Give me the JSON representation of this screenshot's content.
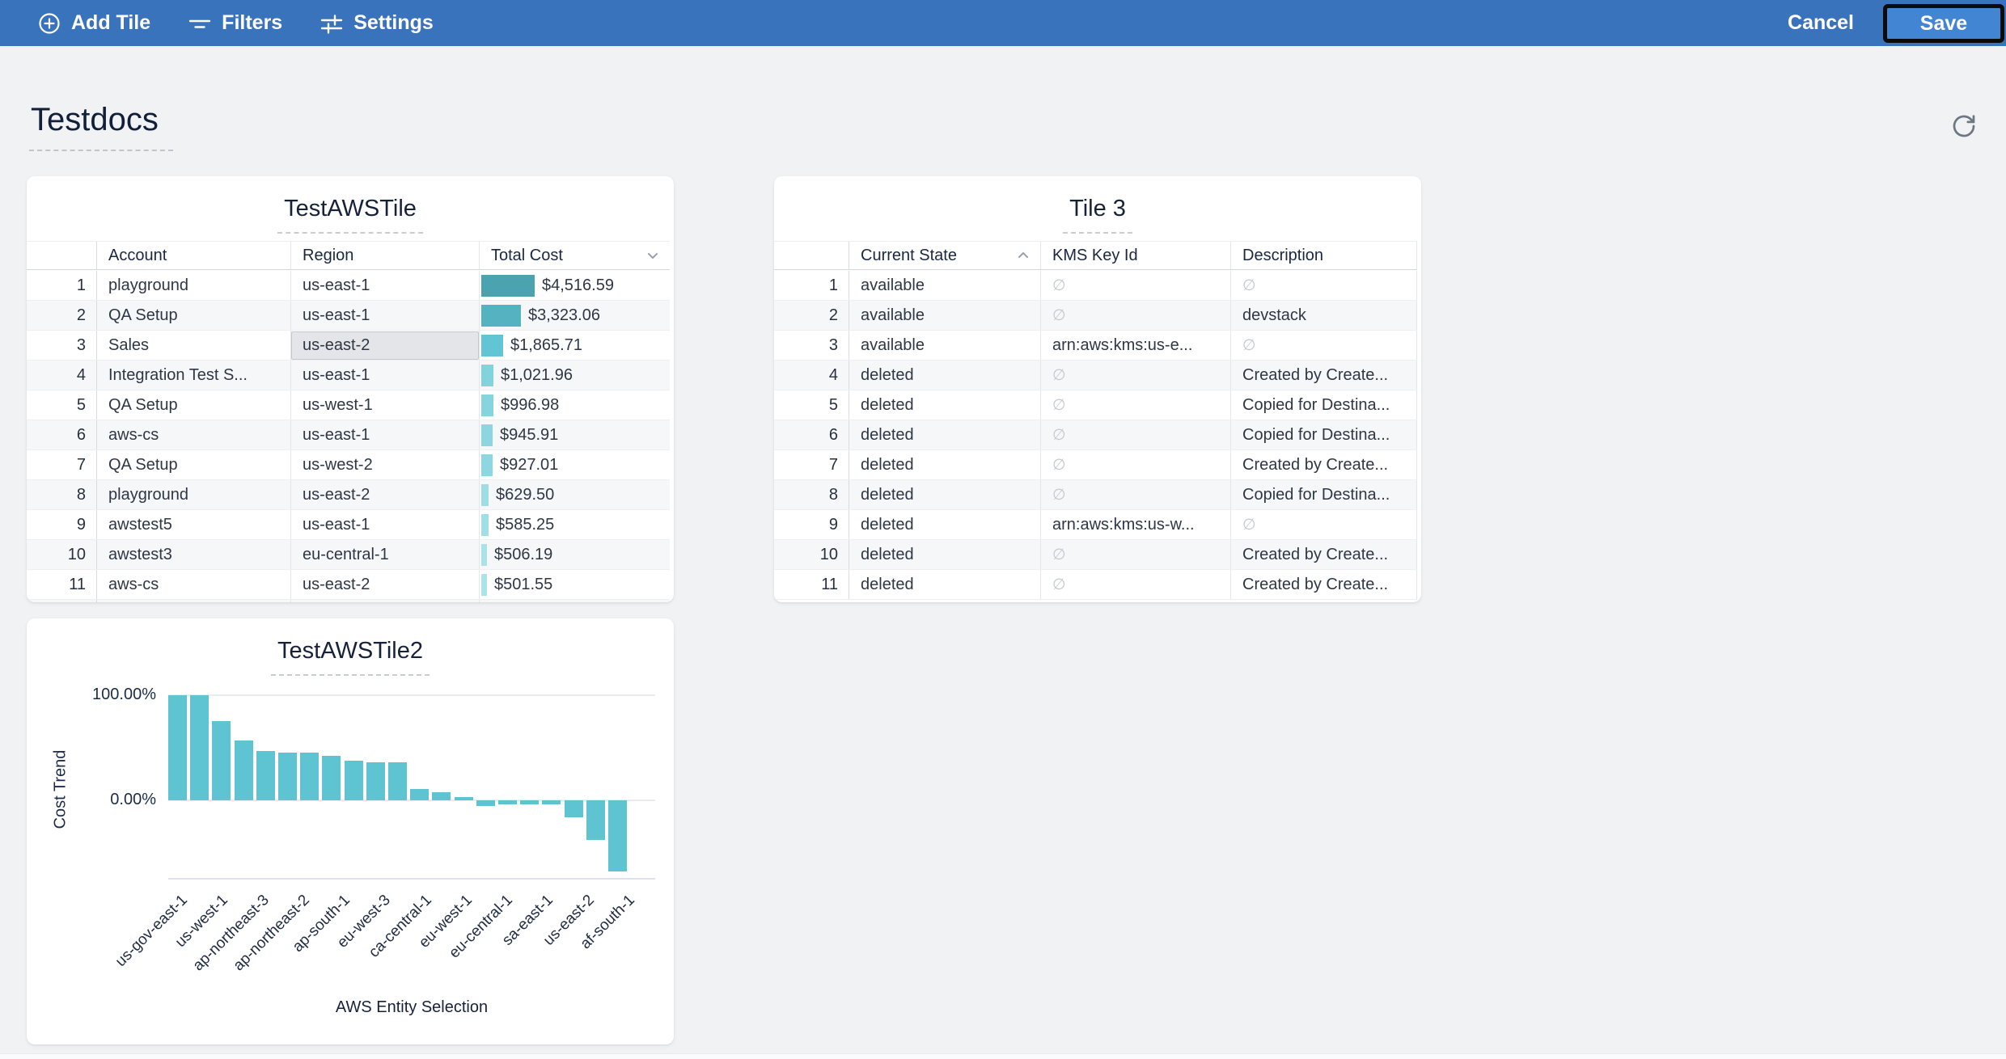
{
  "toolbar": {
    "add_tile": "Add Tile",
    "filters": "Filters",
    "settings": "Settings",
    "cancel": "Cancel",
    "save": "Save",
    "bar_color": "#3973bb",
    "save_bg_color": "#4285d2"
  },
  "page": {
    "title": "Testdocs"
  },
  "tiles": {
    "table1": {
      "title": "TestAWSTile",
      "columns": [
        "Account",
        "Region",
        "Total Cost"
      ],
      "sort": {
        "column": "Total Cost",
        "direction": "desc"
      },
      "max_cost_value": 4516.59,
      "rows": [
        {
          "num": "1",
          "account": "playground",
          "region": "us-east-1",
          "cost": "$4,516.59",
          "value": 4516.59,
          "bar_color": "#4aa3af"
        },
        {
          "num": "2",
          "account": "QA Setup",
          "region": "us-east-1",
          "cost": "$3,323.06",
          "value": 3323.06,
          "bar_color": "#55b2c0"
        },
        {
          "num": "3",
          "account": "Sales",
          "region": "us-east-2",
          "cost": "$1,865.71",
          "value": 1865.71,
          "bar_color": "#61c5d3",
          "region_selected": true
        },
        {
          "num": "4",
          "account": "Integration Test S...",
          "region": "us-east-1",
          "cost": "$1,021.96",
          "value": 1021.96,
          "bar_color": "#83d3dd"
        },
        {
          "num": "5",
          "account": "QA Setup",
          "region": "us-west-1",
          "cost": "$996.98",
          "value": 996.98,
          "bar_color": "#85d4de"
        },
        {
          "num": "6",
          "account": "aws-cs",
          "region": "us-east-1",
          "cost": "$945.91",
          "value": 945.91,
          "bar_color": "#8bd6e0"
        },
        {
          "num": "7",
          "account": "QA Setup",
          "region": "us-west-2",
          "cost": "$927.01",
          "value": 927.01,
          "bar_color": "#8cd7e1"
        },
        {
          "num": "8",
          "account": "playground",
          "region": "us-east-2",
          "cost": "$629.50",
          "value": 629.5,
          "bar_color": "#9edde6"
        },
        {
          "num": "9",
          "account": "awstest5",
          "region": "us-east-1",
          "cost": "$585.25",
          "value": 585.25,
          "bar_color": "#a0dfe8"
        },
        {
          "num": "10",
          "account": "awstest3",
          "region": "eu-central-1",
          "cost": "$506.19",
          "value": 506.19,
          "bar_color": "#aae2ea"
        },
        {
          "num": "11",
          "account": "aws-cs",
          "region": "us-east-2",
          "cost": "$501.55",
          "value": 501.55,
          "bar_color": "#abe3ea"
        }
      ],
      "partial_row_bar_color": "#ade4eb"
    },
    "table2": {
      "title": "Tile 3",
      "columns": [
        "Current State",
        "KMS Key Id",
        "Description"
      ],
      "sort": {
        "column": "Current State",
        "direction": "asc"
      },
      "null_symbol": "∅",
      "rows": [
        {
          "num": "1",
          "state": "available",
          "kms": null,
          "description": null
        },
        {
          "num": "2",
          "state": "available",
          "kms": null,
          "description": "devstack"
        },
        {
          "num": "3",
          "state": "available",
          "kms": "arn:aws:kms:us-e...",
          "description": null
        },
        {
          "num": "4",
          "state": "deleted",
          "kms": null,
          "description": "Created by Create..."
        },
        {
          "num": "5",
          "state": "deleted",
          "kms": null,
          "description": "Copied for Destina..."
        },
        {
          "num": "6",
          "state": "deleted",
          "kms": null,
          "description": "Copied for Destina..."
        },
        {
          "num": "7",
          "state": "deleted",
          "kms": null,
          "description": "Created by Create..."
        },
        {
          "num": "8",
          "state": "deleted",
          "kms": null,
          "description": "Copied for Destina..."
        },
        {
          "num": "9",
          "state": "deleted",
          "kms": "arn:aws:kms:us-w...",
          "description": null
        },
        {
          "num": "10",
          "state": "deleted",
          "kms": null,
          "description": "Created by Create..."
        },
        {
          "num": "11",
          "state": "deleted",
          "kms": null,
          "description": "Created by Create..."
        }
      ]
    }
  },
  "chart_data": {
    "type": "bar",
    "title": "TestAWSTile2",
    "xlabel": "AWS Entity Selection",
    "ylabel": "Cost Trend",
    "yticks": [
      "100.00%",
      "0.00%"
    ],
    "ylim": [
      -75,
      105
    ],
    "grid": "horizontal-at-ticks",
    "legend": "none",
    "bar_color": "#5ec4d1",
    "values": [
      100,
      100,
      75,
      57,
      47,
      45,
      45,
      42,
      38,
      36,
      36,
      11,
      8,
      3,
      -5,
      -4,
      -4,
      -4,
      -16,
      -38,
      -68
    ],
    "x_tick_labels": [
      "us-gov-east-1",
      "us-west-1",
      "ap-northeast-3",
      "ap-northeast-2",
      "ap-south-1",
      "eu-west-3",
      "ca-central-1",
      "eu-west-1",
      "eu-central-1",
      "sa-east-1",
      "us-east-2",
      "af-south-1"
    ]
  }
}
